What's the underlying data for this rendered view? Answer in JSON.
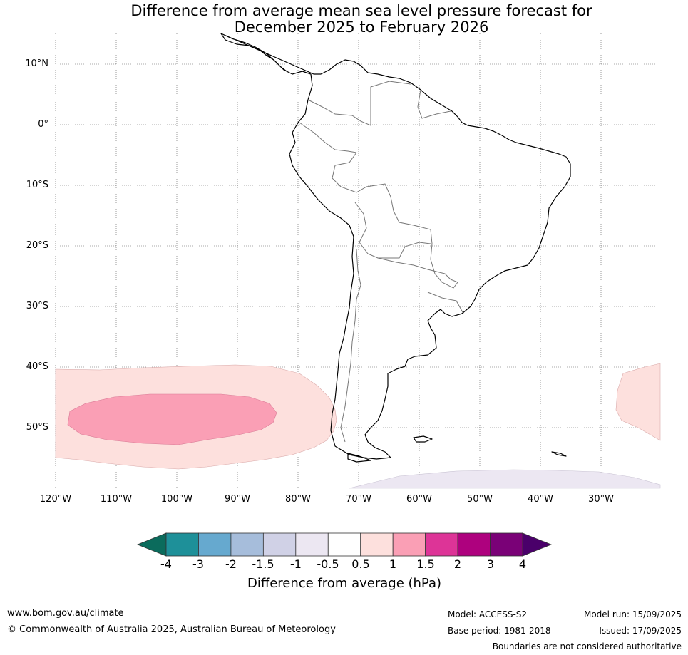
{
  "title": {
    "line1": "Difference from average mean sea level pressure forecast for",
    "line2": "December 2025 to February 2026"
  },
  "map": {
    "lat_labels": [
      "10°N",
      "0°",
      "10°S",
      "20°S",
      "30°S",
      "40°S",
      "50°S"
    ],
    "lon_labels": [
      "120°W",
      "110°W",
      "100°W",
      "90°W",
      "80°W",
      "70°W",
      "60°W",
      "50°W",
      "40°W",
      "30°W"
    ],
    "lon_range": [
      -120,
      -20
    ],
    "lat_range": [
      -60,
      15
    ]
  },
  "colorbar": {
    "ticks": [
      "-4",
      "-3",
      "-2",
      "-1.5",
      "-1",
      "-0.5",
      "0.5",
      "1",
      "1.5",
      "2",
      "3",
      "4"
    ],
    "colors": [
      "#1e9099",
      "#66a9cf",
      "#a6bddb",
      "#d0d1e6",
      "#ece7f2",
      "#ffffff",
      "#fde0dd",
      "#fa9fb5",
      "#dd3497",
      "#ae017e",
      "#7a0177"
    ],
    "low_extend_color": "#0b6b5c",
    "high_extend_color": "#4a006a",
    "label": "Difference from average (hPa)"
  },
  "footer": {
    "website": "www.bom.gov.au/climate",
    "copyright": "© Commonwealth of Australia 2025, Australian Bureau of Meteorology",
    "model": "Model: ACCESS-S2",
    "base_period": "Base period: 1981-2018",
    "model_run": "Model run: 15/09/2025",
    "issued": "Issued: 17/09/2025",
    "disclaimer": "Boundaries are not considered authoritative"
  }
}
